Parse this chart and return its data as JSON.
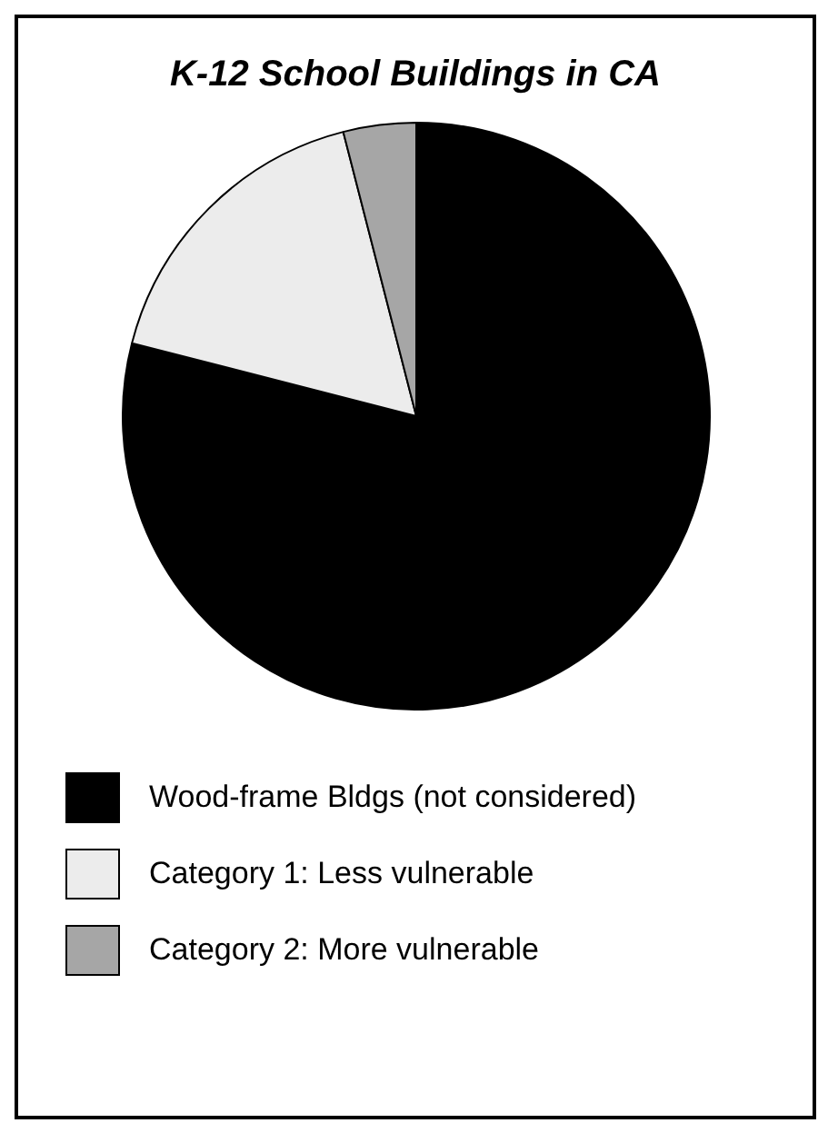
{
  "chart_data": {
    "type": "pie",
    "title": "K-12 School Buildings in CA",
    "categories": [
      "Wood-frame Bldgs (not considered)",
      "Category 1: Less vulnerable",
      "Category 2: More vulnerable"
    ],
    "values": [
      79,
      17,
      4
    ],
    "colors": [
      "#000000",
      "#ececec",
      "#a6a6a6"
    ],
    "legend": "bottom"
  }
}
